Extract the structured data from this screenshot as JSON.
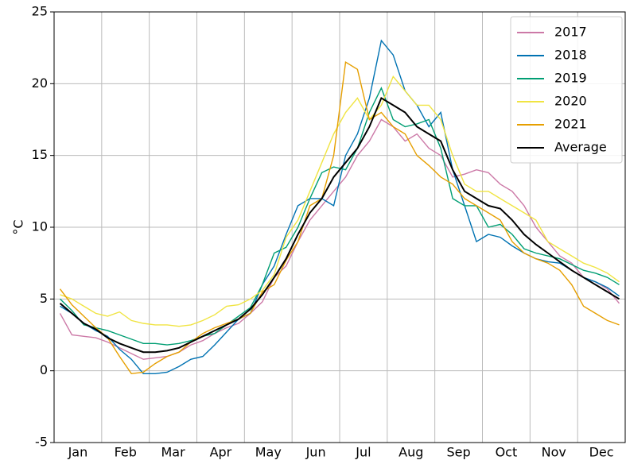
{
  "chart_data": {
    "type": "line",
    "y_label": "°C",
    "categories": [
      null,
      "Jan",
      null,
      null,
      null,
      "Feb",
      null,
      null,
      null,
      "Mar",
      null,
      null,
      null,
      "Apr",
      null,
      null,
      null,
      "May",
      null,
      null,
      null,
      "Jun",
      null,
      null,
      null,
      "Jul",
      null,
      null,
      null,
      "Aug",
      null,
      null,
      null,
      "Sep",
      null,
      null,
      null,
      "Oct",
      null,
      null,
      null,
      "Nov",
      null,
      null,
      null,
      "Dec",
      null,
      null
    ],
    "series": [
      {
        "name": "2017",
        "color": "#cc79a7",
        "values": [
          4.0,
          2.5,
          2.4,
          2.3,
          2.0,
          1.6,
          1.2,
          0.8,
          0.9,
          1.0,
          1.3,
          1.8,
          2.1,
          2.6,
          3.0,
          3.3,
          4.0,
          4.8,
          6.5,
          7.3,
          9.0,
          10.5,
          11.5,
          12.5,
          13.5,
          15.0,
          16.0,
          17.5,
          17.0,
          16.0,
          16.5,
          15.5,
          15.0,
          13.5,
          13.7,
          14.0,
          13.8,
          13.0,
          12.5,
          11.5,
          10.0,
          9.0,
          8.0,
          7.5,
          6.5,
          6.2,
          5.7,
          4.7
        ]
      },
      {
        "name": "2018",
        "color": "#0072b2",
        "values": [
          4.5,
          4.0,
          3.3,
          2.8,
          2.4,
          1.5,
          0.8,
          -0.2,
          -0.2,
          -0.1,
          0.3,
          0.8,
          1.0,
          1.8,
          2.7,
          3.6,
          4.0,
          6.0,
          7.3,
          9.5,
          11.5,
          12.0,
          12.0,
          11.5,
          15.0,
          16.5,
          19.0,
          23.0,
          22.0,
          19.5,
          18.5,
          17.0,
          18.0,
          14.0,
          11.5,
          9.0,
          9.5,
          9.3,
          8.7,
          8.2,
          7.8,
          7.6,
          7.5,
          7.0,
          6.5,
          6.2,
          5.8,
          5.2
        ]
      },
      {
        "name": "2019",
        "color": "#009e73",
        "values": [
          5.0,
          4.2,
          3.2,
          3.0,
          2.8,
          2.5,
          2.2,
          1.9,
          1.9,
          1.8,
          1.9,
          2.1,
          2.4,
          2.6,
          3.2,
          3.8,
          4.4,
          6.0,
          8.2,
          8.6,
          10.0,
          12.0,
          13.8,
          14.2,
          14.0,
          15.5,
          18.0,
          19.7,
          17.5,
          17.0,
          17.2,
          17.5,
          15.5,
          12.0,
          11.5,
          11.5,
          10.0,
          10.2,
          9.5,
          8.5,
          8.2,
          8.0,
          7.8,
          7.4,
          7.0,
          6.8,
          6.5,
          6.0
        ]
      },
      {
        "name": "2020",
        "color": "#f0e442",
        "values": [
          5.3,
          5.0,
          4.5,
          4.0,
          3.8,
          4.1,
          3.5,
          3.3,
          3.2,
          3.2,
          3.1,
          3.2,
          3.5,
          3.9,
          4.5,
          4.6,
          5.0,
          5.6,
          6.7,
          9.3,
          10.5,
          12.5,
          14.5,
          16.5,
          18.0,
          19.0,
          17.5,
          18.5,
          20.5,
          19.5,
          18.5,
          18.5,
          17.5,
          15.0,
          13.0,
          12.5,
          12.5,
          12.0,
          11.5,
          11.0,
          10.5,
          9.0,
          8.5,
          8.0,
          7.5,
          7.2,
          6.8,
          6.2
        ]
      },
      {
        "name": "2021",
        "color": "#e69f00",
        "values": [
          5.7,
          4.6,
          3.8,
          3.0,
          2.3,
          1.0,
          -0.2,
          -0.1,
          0.5,
          1.0,
          1.3,
          2.0,
          2.6,
          3.0,
          3.3,
          3.6,
          4.0,
          5.5,
          6.0,
          7.7,
          9.0,
          11.5,
          12.0,
          15.0,
          21.5,
          21.0,
          17.5,
          18.0,
          17.0,
          16.5,
          15.0,
          14.3,
          13.5,
          13.0,
          12.0,
          11.5,
          11.0,
          10.5,
          9.0,
          8.2,
          7.8,
          7.5,
          7.0,
          6.0,
          4.5,
          4.0,
          3.5,
          3.2
        ]
      },
      {
        "name": "Average",
        "color": "#000000",
        "values": [
          4.7,
          4.0,
          3.3,
          2.9,
          2.3,
          1.9,
          1.6,
          1.3,
          1.3,
          1.4,
          1.6,
          2.0,
          2.4,
          2.8,
          3.2,
          3.6,
          4.3,
          5.3,
          6.5,
          7.8,
          9.5,
          11.0,
          12.0,
          13.5,
          14.5,
          15.5,
          17.0,
          19.0,
          18.5,
          18.0,
          17.0,
          16.5,
          16.0,
          14.0,
          12.5,
          12.0,
          11.5,
          11.3,
          10.5,
          9.5,
          8.8,
          8.2,
          7.6,
          7.0,
          6.5,
          6.0,
          5.5,
          5.0
        ]
      }
    ],
    "ylim": [
      -5,
      25
    ],
    "yticks": [
      -5,
      0,
      5,
      10,
      15,
      20,
      25
    ],
    "grid": true,
    "legend": "upper right"
  }
}
